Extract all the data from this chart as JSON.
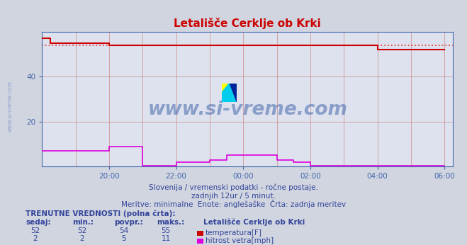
{
  "title": "Letališče Cerklje ob Krki",
  "bg_color": "#d0d5e0",
  "plot_bg_color": "#dde2ee",
  "grid_color": "#cc8888",
  "title_color": "#cc0000",
  "axis_color": "#4466aa",
  "text_color": "#334499",
  "temp_color": "#cc0000",
  "wind_color": "#dd00dd",
  "temp_dotted_color": "#dd4444",
  "ylim": [
    0,
    60
  ],
  "y_ticks": [
    20,
    40
  ],
  "x_tick_labels": [
    "20:00",
    "22:00",
    "00:00",
    "02:00",
    "04:00",
    "06:00"
  ],
  "watermark_text": "www.si-vreme.com",
  "watermark_color": "#4466aa",
  "subtitle1": "Slovenija / vremenski podatki - ročne postaje.",
  "subtitle2": "zadnjih 12ur / 5 minut.",
  "subtitle3": "Meritve: minimalne  Enote: anglešaške  Črta: zadnja meritev",
  "legend_title": "TRENUTNE VREDNOSTI (polna črta):",
  "temp_label": "temperatura[F]",
  "wind_label": "hitrost vetra[mph]"
}
